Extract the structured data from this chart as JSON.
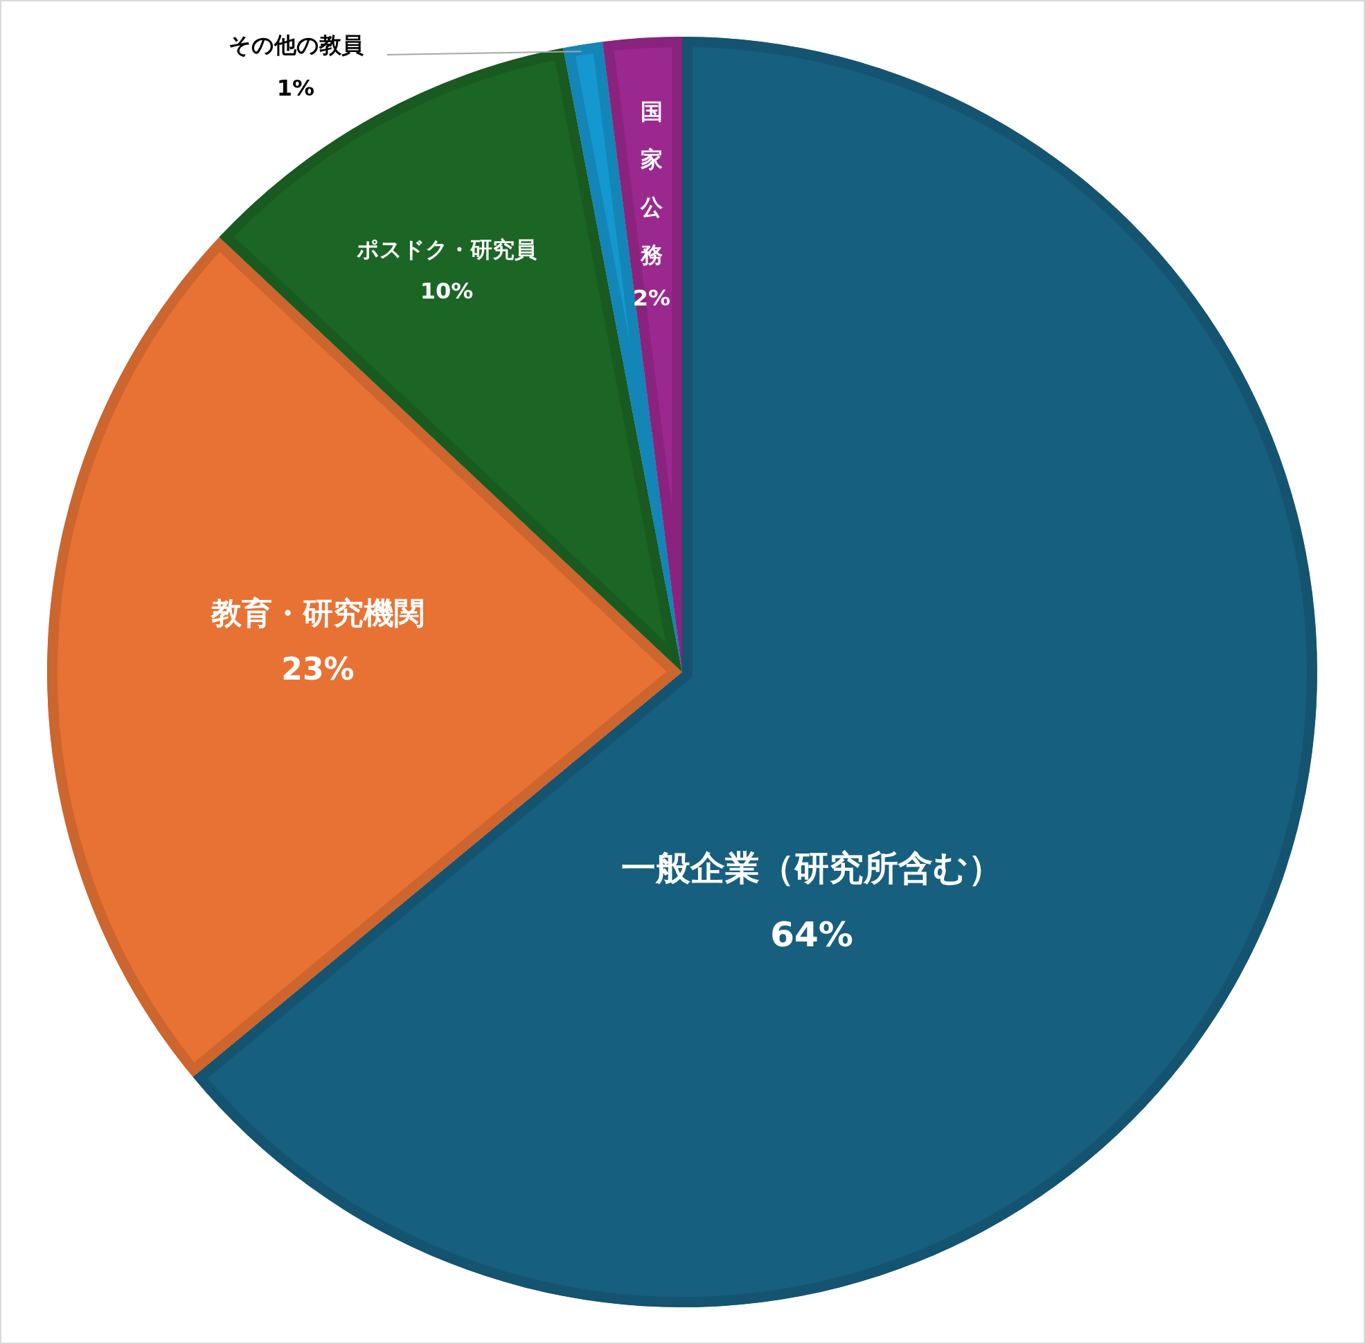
{
  "chart_data": {
    "type": "pie",
    "categories": [
      "一般企業（研究所含む）",
      "教育・研究機関",
      "ポスドク・研究員",
      "その他の教員",
      "国家公務"
    ],
    "values": [
      64,
      23,
      10,
      1,
      2
    ],
    "value_labels": [
      "64%",
      "23%",
      "10%",
      "1%",
      "2%"
    ],
    "colors": [
      "#175f7f",
      "#e87234",
      "#1b6624",
      "#1597cf",
      "#9b288f"
    ]
  }
}
